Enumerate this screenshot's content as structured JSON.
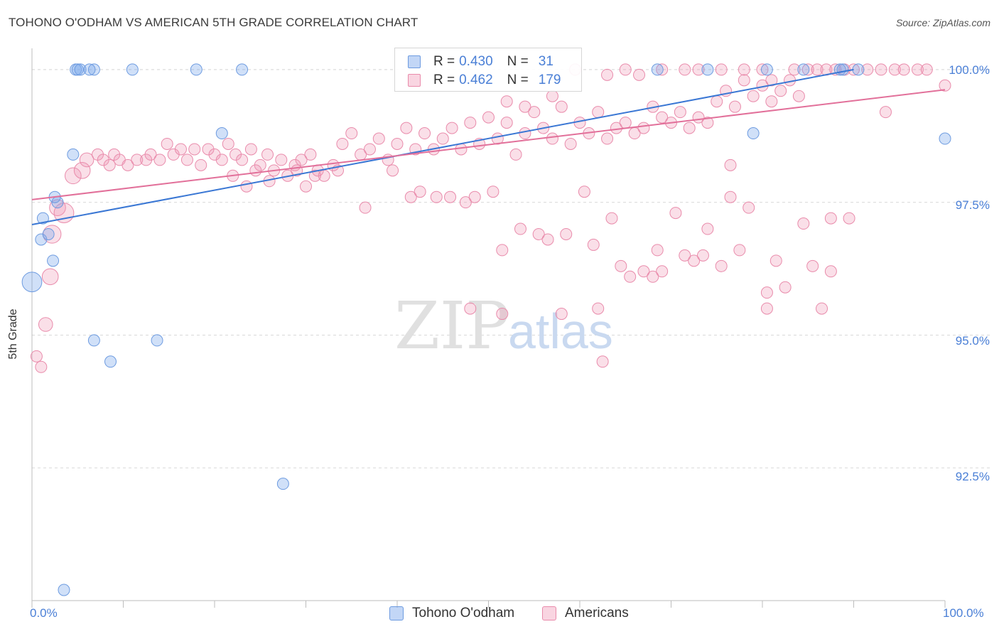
{
  "title": "TOHONO O'ODHAM VS AMERICAN 5TH GRADE CORRELATION CHART",
  "source": "Source: ZipAtlas.com",
  "watermark": {
    "zip": "ZIP",
    "atlas": "atlas"
  },
  "colors": {
    "blue_fill": "rgba(120,165,235,0.35)",
    "blue_stroke": "#6d9be0",
    "blue_line": "#3a77d4",
    "pink_fill": "rgba(240,150,180,0.30)",
    "pink_stroke": "#e98bab",
    "pink_line": "#e2709a",
    "tick_label": "#4a7fd6",
    "grid": "#d9d9d9"
  },
  "legend": {
    "r_label": "R =",
    "n_label": "N =",
    "rows": [
      {
        "series": "Tohono O'odham",
        "r": "0.430",
        "n": "31",
        "color": "blue"
      },
      {
        "series": "Americans",
        "r": "0.462",
        "n": "179",
        "color": "pink"
      }
    ]
  },
  "chart_data": {
    "type": "scatter",
    "title": "TOHONO O'ODHAM VS AMERICAN 5TH GRADE CORRELATION CHART",
    "xlabel": "",
    "ylabel": "5th Grade",
    "xlim": [
      0,
      100
    ],
    "ylim": [
      90.0,
      100.4
    ],
    "x_tick_labels": [
      "0.0%",
      "100.0%"
    ],
    "y_ticks": [
      92.5,
      95.0,
      97.5,
      100.0
    ],
    "y_tick_labels": [
      "92.5%",
      "95.0%",
      "97.5%",
      "100.0%"
    ],
    "grid": true,
    "legend_position": "bottom",
    "series": [
      {
        "name": "Tohono O'odham",
        "color": "blue",
        "trend": {
          "x": [
            0,
            90
          ],
          "y": [
            97.08,
            100.0
          ]
        },
        "points": [
          [
            0,
            96.0,
            3
          ],
          [
            1,
            96.8,
            1
          ],
          [
            1.2,
            97.2,
            1
          ],
          [
            1.8,
            96.9,
            1
          ],
          [
            2.3,
            96.4,
            1
          ],
          [
            2.8,
            97.5,
            1
          ],
          [
            4.5,
            98.4,
            1
          ],
          [
            6.8,
            100.0,
            1
          ],
          [
            2.5,
            97.6,
            1
          ],
          [
            4.8,
            100.0,
            1
          ],
          [
            5,
            100.0,
            1
          ],
          [
            5.3,
            100.0,
            1
          ],
          [
            6.3,
            100.0,
            1
          ],
          [
            11,
            100.0,
            1
          ],
          [
            18,
            100.0,
            1
          ],
          [
            23,
            100.0,
            1
          ],
          [
            6.8,
            94.9,
            1
          ],
          [
            8.6,
            94.5,
            1
          ],
          [
            13.7,
            94.9,
            1
          ],
          [
            20.8,
            98.8,
            1
          ],
          [
            27.5,
            92.2,
            1
          ],
          [
            3.5,
            90.2,
            1
          ],
          [
            68.5,
            100.0,
            1
          ],
          [
            74,
            100.0,
            1
          ],
          [
            80.5,
            100.0,
            1
          ],
          [
            84.5,
            100.0,
            1
          ],
          [
            88.5,
            100.0,
            1
          ],
          [
            90.5,
            100.0,
            1
          ],
          [
            88.8,
            100.0,
            1
          ],
          [
            79,
            98.8,
            1
          ],
          [
            100,
            98.7,
            1
          ]
        ]
      },
      {
        "name": "Americans",
        "color": "pink",
        "trend": {
          "x": [
            0,
            100
          ],
          "y": [
            97.55,
            99.62
          ]
        },
        "points": [
          [
            0.5,
            94.6,
            1
          ],
          [
            1.0,
            94.4,
            1
          ],
          [
            1.5,
            95.2,
            1.5
          ],
          [
            2.0,
            96.1,
            2
          ],
          [
            2.2,
            96.9,
            2.5
          ],
          [
            2.8,
            97.4,
            2
          ],
          [
            3.5,
            97.3,
            3
          ],
          [
            4.5,
            98.0,
            2
          ],
          [
            5.5,
            98.1,
            2
          ],
          [
            6.0,
            98.3,
            1.5
          ],
          [
            7.2,
            98.4,
            1
          ],
          [
            7.8,
            98.3,
            1
          ],
          [
            8.5,
            98.2,
            1
          ],
          [
            9.0,
            98.4,
            1
          ],
          [
            9.6,
            98.3,
            1
          ],
          [
            10.5,
            98.2,
            1
          ],
          [
            11.5,
            98.3,
            1
          ],
          [
            12.5,
            98.3,
            1
          ],
          [
            13.0,
            98.4,
            1
          ],
          [
            14.0,
            98.3,
            1
          ],
          [
            14.8,
            98.6,
            1
          ],
          [
            15.5,
            98.4,
            1
          ],
          [
            16.3,
            98.5,
            1
          ],
          [
            17.0,
            98.3,
            1
          ],
          [
            17.8,
            98.5,
            1
          ],
          [
            18.5,
            98.2,
            1
          ],
          [
            19.3,
            98.5,
            1
          ],
          [
            20.0,
            98.4,
            1
          ],
          [
            20.8,
            98.3,
            1
          ],
          [
            21.5,
            98.6,
            1
          ],
          [
            22.3,
            98.4,
            1
          ],
          [
            23.0,
            98.3,
            1
          ],
          [
            24.0,
            98.5,
            1
          ],
          [
            25.0,
            98.2,
            1
          ],
          [
            25.8,
            98.4,
            1
          ],
          [
            26.5,
            98.1,
            1
          ],
          [
            27.3,
            98.3,
            1
          ],
          [
            28.0,
            98.0,
            1
          ],
          [
            28.8,
            98.2,
            1
          ],
          [
            29.5,
            98.3,
            1
          ],
          [
            30.5,
            98.4,
            1
          ],
          [
            31.3,
            98.1,
            1
          ],
          [
            32.0,
            98.0,
            1
          ],
          [
            33.0,
            98.2,
            1
          ],
          [
            34.0,
            98.6,
            1
          ],
          [
            35.0,
            98.8,
            1
          ],
          [
            36.0,
            98.4,
            1
          ],
          [
            37.0,
            98.5,
            1
          ],
          [
            38.0,
            98.7,
            1
          ],
          [
            39.0,
            98.3,
            1
          ],
          [
            40.0,
            98.6,
            1
          ],
          [
            41.0,
            98.9,
            1
          ],
          [
            42.0,
            98.5,
            1
          ],
          [
            43.0,
            98.8,
            1
          ],
          [
            44.0,
            98.5,
            1
          ],
          [
            45.0,
            98.7,
            1
          ],
          [
            46.0,
            98.9,
            1
          ],
          [
            47.0,
            98.5,
            1
          ],
          [
            48.0,
            99.0,
            1
          ],
          [
            49.0,
            98.6,
            1
          ],
          [
            50.0,
            99.1,
            1
          ],
          [
            51.0,
            98.7,
            1
          ],
          [
            52.0,
            99.0,
            1
          ],
          [
            53.0,
            98.4,
            1
          ],
          [
            54.0,
            98.8,
            1
          ],
          [
            55.0,
            99.2,
            1
          ],
          [
            56.0,
            98.9,
            1
          ],
          [
            57.0,
            98.7,
            1
          ],
          [
            58.0,
            99.3,
            1
          ],
          [
            59.0,
            98.6,
            1
          ],
          [
            60.0,
            99.0,
            1
          ],
          [
            61.0,
            98.8,
            1
          ],
          [
            62.0,
            99.2,
            1
          ],
          [
            63.0,
            98.7,
            1
          ],
          [
            64.0,
            98.9,
            1
          ],
          [
            65.0,
            99.0,
            1
          ],
          [
            66.0,
            98.8,
            1
          ],
          [
            67.0,
            98.9,
            1
          ],
          [
            68.0,
            99.3,
            1
          ],
          [
            69.0,
            99.1,
            1
          ],
          [
            70.0,
            99.0,
            1
          ],
          [
            71.0,
            99.2,
            1
          ],
          [
            72.0,
            98.9,
            1
          ],
          [
            73.0,
            99.1,
            1
          ],
          [
            74.0,
            99.0,
            1
          ],
          [
            75.0,
            99.4,
            1
          ],
          [
            76.0,
            99.6,
            1
          ],
          [
            77.0,
            99.3,
            1
          ],
          [
            78.0,
            99.8,
            1
          ],
          [
            79.0,
            99.5,
            1
          ],
          [
            80.0,
            99.7,
            1
          ],
          [
            81.0,
            99.4,
            1
          ],
          [
            82.0,
            99.6,
            1
          ],
          [
            83.0,
            99.8,
            1
          ],
          [
            84.0,
            99.5,
            1
          ],
          [
            22.0,
            98.0,
            1
          ],
          [
            23.5,
            97.8,
            1
          ],
          [
            24.5,
            98.1,
            1
          ],
          [
            26.0,
            97.9,
            1
          ],
          [
            29.0,
            98.1,
            1
          ],
          [
            30.0,
            97.8,
            1
          ],
          [
            31.0,
            98.0,
            1
          ],
          [
            33.5,
            98.1,
            1
          ],
          [
            36.5,
            97.4,
            1
          ],
          [
            39.5,
            98.1,
            1
          ],
          [
            41.5,
            97.6,
            1
          ],
          [
            42.5,
            97.7,
            1
          ],
          [
            44.3,
            97.6,
            1
          ],
          [
            45.8,
            97.6,
            1
          ],
          [
            47.5,
            97.5,
            1
          ],
          [
            48.5,
            97.6,
            1
          ],
          [
            50.5,
            97.7,
            1
          ],
          [
            51.5,
            96.6,
            1
          ],
          [
            53.5,
            97.0,
            1
          ],
          [
            55.5,
            96.9,
            1
          ],
          [
            56.5,
            96.8,
            1
          ],
          [
            58.5,
            96.9,
            1
          ],
          [
            60.5,
            97.7,
            1
          ],
          [
            61.5,
            96.7,
            1
          ],
          [
            63.5,
            97.2,
            1
          ],
          [
            64.5,
            96.3,
            1
          ],
          [
            65.5,
            96.1,
            1
          ],
          [
            67.0,
            96.2,
            1
          ],
          [
            68.5,
            96.6,
            1
          ],
          [
            70.5,
            97.3,
            1
          ],
          [
            71.5,
            96.5,
            1
          ],
          [
            72.5,
            96.4,
            1
          ],
          [
            74.0,
            97.0,
            1
          ],
          [
            75.5,
            96.3,
            1
          ],
          [
            76.5,
            97.6,
            1
          ],
          [
            77.5,
            96.6,
            1
          ],
          [
            78.5,
            97.4,
            1
          ],
          [
            80.5,
            95.8,
            1
          ],
          [
            81.5,
            96.4,
            1
          ],
          [
            82.5,
            95.9,
            1
          ],
          [
            84.5,
            97.1,
            1
          ],
          [
            85.5,
            96.3,
            1
          ],
          [
            86.5,
            95.5,
            1
          ],
          [
            87.5,
            96.2,
            1
          ],
          [
            89.5,
            97.2,
            1
          ],
          [
            48.0,
            95.5,
            1
          ],
          [
            51.5,
            95.4,
            1
          ],
          [
            58.0,
            95.4,
            1
          ],
          [
            62.0,
            95.5,
            1
          ],
          [
            62.5,
            94.5,
            1
          ],
          [
            68.0,
            96.1,
            1
          ],
          [
            69.0,
            96.2,
            1
          ],
          [
            73.5,
            96.5,
            1
          ],
          [
            80.5,
            95.5,
            1
          ],
          [
            81.0,
            99.8,
            1
          ],
          [
            52.0,
            99.4,
            1
          ],
          [
            54.0,
            99.3,
            1
          ],
          [
            57.0,
            99.5,
            1
          ],
          [
            59.5,
            100.0,
            1
          ],
          [
            63.0,
            99.9,
            1
          ],
          [
            65.0,
            100.0,
            1
          ],
          [
            66.5,
            99.9,
            1
          ],
          [
            69.0,
            100.0,
            1
          ],
          [
            71.5,
            100.0,
            1
          ],
          [
            73.0,
            100.0,
            1
          ],
          [
            75.5,
            100.0,
            1
          ],
          [
            78.0,
            100.0,
            1
          ],
          [
            80.0,
            100.0,
            1
          ],
          [
            83.5,
            100.0,
            1
          ],
          [
            85.0,
            100.0,
            1
          ],
          [
            86.0,
            100.0,
            1
          ],
          [
            87.0,
            100.0,
            1
          ],
          [
            88.0,
            100.0,
            1
          ],
          [
            89.0,
            100.0,
            1
          ],
          [
            90.0,
            100.0,
            1
          ],
          [
            91.5,
            100.0,
            1
          ],
          [
            93.0,
            100.0,
            1
          ],
          [
            94.5,
            100.0,
            1
          ],
          [
            95.5,
            100.0,
            1
          ],
          [
            97.0,
            100.0,
            1
          ],
          [
            98.0,
            100.0,
            1
          ],
          [
            100.0,
            99.7,
            1
          ],
          [
            87.5,
            97.2,
            1
          ],
          [
            76.5,
            98.2,
            1
          ],
          [
            93.5,
            99.2,
            1
          ]
        ]
      }
    ]
  }
}
